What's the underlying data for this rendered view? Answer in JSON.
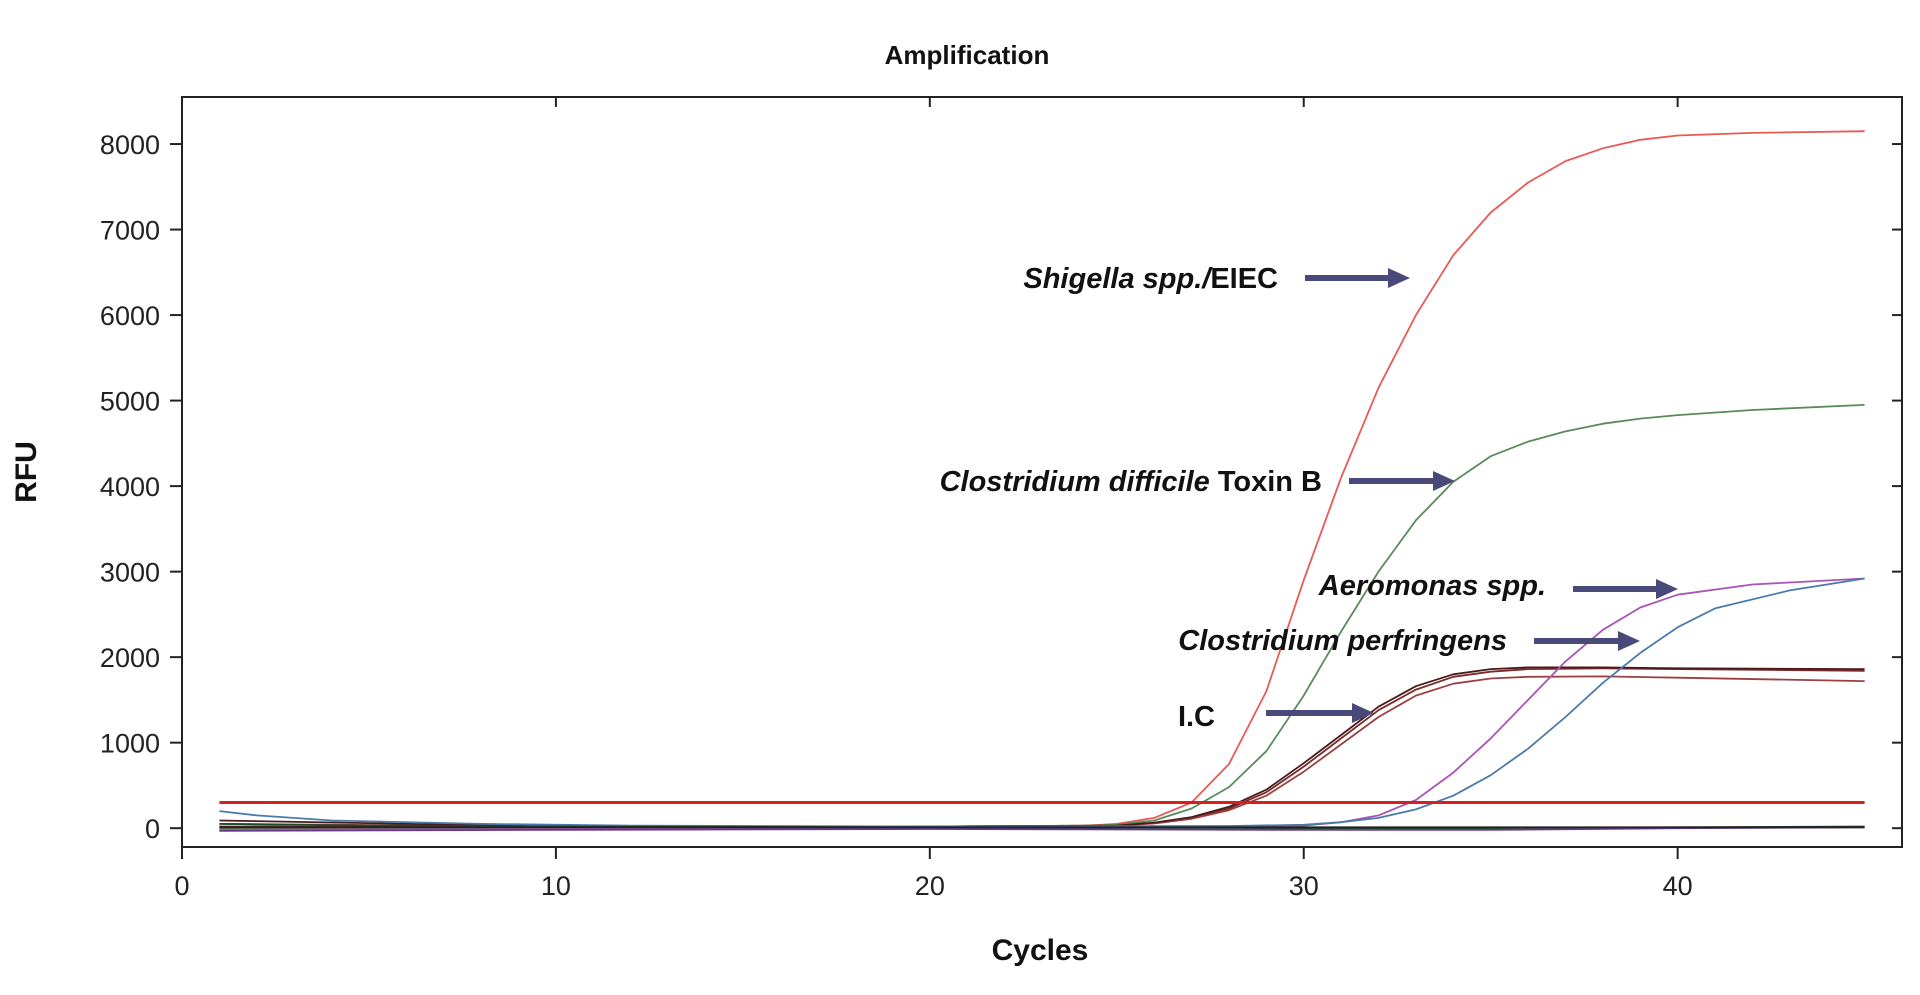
{
  "chart_data": {
    "type": "line",
    "title": "Amplification",
    "xlabel": "Cycles",
    "ylabel": "RFU",
    "xlim": [
      0,
      46
    ],
    "ylim": [
      -220,
      8550
    ],
    "xticks": [
      0,
      10,
      20,
      30,
      40
    ],
    "yticks": [
      0,
      1000,
      2000,
      3000,
      4000,
      5000,
      6000,
      7000,
      8000
    ],
    "grid": false,
    "threshold": {
      "value": 300,
      "color": "#d62020"
    },
    "series": [
      {
        "color": "#e85a55",
        "points": [
          [
            1,
            -10
          ],
          [
            10,
            10
          ],
          [
            20,
            20
          ],
          [
            24,
            25
          ],
          [
            25,
            50
          ],
          [
            26,
            120
          ],
          [
            27,
            300
          ],
          [
            28,
            750
          ],
          [
            29,
            1600
          ],
          [
            30,
            2900
          ],
          [
            31,
            4100
          ],
          [
            32,
            5150
          ],
          [
            33,
            6000
          ],
          [
            34,
            6700
          ],
          [
            35,
            7200
          ],
          [
            36,
            7550
          ],
          [
            37,
            7800
          ],
          [
            38,
            7950
          ],
          [
            39,
            8050
          ],
          [
            40,
            8100
          ],
          [
            42,
            8130
          ],
          [
            45,
            8150
          ]
        ]
      },
      {
        "color": "#5a8a5a",
        "points": [
          [
            1,
            0
          ],
          [
            10,
            10
          ],
          [
            20,
            20
          ],
          [
            24,
            25
          ],
          [
            25,
            40
          ],
          [
            26,
            90
          ],
          [
            27,
            230
          ],
          [
            28,
            480
          ],
          [
            29,
            900
          ],
          [
            30,
            1550
          ],
          [
            31,
            2300
          ],
          [
            32,
            3000
          ],
          [
            33,
            3600
          ],
          [
            34,
            4050
          ],
          [
            35,
            4350
          ],
          [
            36,
            4520
          ],
          [
            37,
            4640
          ],
          [
            38,
            4730
          ],
          [
            39,
            4790
          ],
          [
            40,
            4830
          ],
          [
            42,
            4890
          ],
          [
            45,
            4950
          ]
        ]
      },
      {
        "color": "#7a2a2a",
        "points": [
          [
            1,
            20
          ],
          [
            10,
            10
          ],
          [
            20,
            20
          ],
          [
            25,
            30
          ],
          [
            26,
            60
          ],
          [
            27,
            120
          ],
          [
            28,
            230
          ],
          [
            29,
            420
          ],
          [
            30,
            720
          ],
          [
            31,
            1050
          ],
          [
            32,
            1380
          ],
          [
            33,
            1620
          ],
          [
            34,
            1770
          ],
          [
            35,
            1830
          ],
          [
            36,
            1860
          ],
          [
            38,
            1870
          ],
          [
            40,
            1860
          ],
          [
            45,
            1840
          ]
        ]
      },
      {
        "color": "#9a4040",
        "points": [
          [
            1,
            50
          ],
          [
            10,
            20
          ],
          [
            20,
            20
          ],
          [
            25,
            30
          ],
          [
            26,
            55
          ],
          [
            27,
            110
          ],
          [
            28,
            210
          ],
          [
            29,
            380
          ],
          [
            30,
            660
          ],
          [
            31,
            980
          ],
          [
            32,
            1300
          ],
          [
            33,
            1550
          ],
          [
            34,
            1690
          ],
          [
            35,
            1750
          ],
          [
            36,
            1770
          ],
          [
            38,
            1775
          ],
          [
            40,
            1760
          ],
          [
            45,
            1720
          ]
        ]
      },
      {
        "color": "#4a1a1a",
        "points": [
          [
            1,
            90
          ],
          [
            10,
            20
          ],
          [
            20,
            20
          ],
          [
            25,
            30
          ],
          [
            26,
            65
          ],
          [
            27,
            130
          ],
          [
            28,
            250
          ],
          [
            29,
            450
          ],
          [
            30,
            760
          ],
          [
            31,
            1090
          ],
          [
            32,
            1420
          ],
          [
            33,
            1660
          ],
          [
            34,
            1800
          ],
          [
            35,
            1860
          ],
          [
            36,
            1880
          ],
          [
            38,
            1880
          ],
          [
            40,
            1870
          ],
          [
            45,
            1860
          ]
        ]
      },
      {
        "color": "#a855b5",
        "points": [
          [
            1,
            -20
          ],
          [
            10,
            -10
          ],
          [
            20,
            0
          ],
          [
            28,
            10
          ],
          [
            30,
            30
          ],
          [
            31,
            70
          ],
          [
            32,
            150
          ],
          [
            33,
            330
          ],
          [
            34,
            650
          ],
          [
            35,
            1050
          ],
          [
            36,
            1500
          ],
          [
            37,
            1950
          ],
          [
            38,
            2320
          ],
          [
            39,
            2580
          ],
          [
            40,
            2730
          ],
          [
            42,
            2850
          ],
          [
            45,
            2920
          ]
        ]
      },
      {
        "color": "#4a7aaa",
        "points": [
          [
            1,
            200
          ],
          [
            2,
            150
          ],
          [
            4,
            90
          ],
          [
            8,
            50
          ],
          [
            12,
            30
          ],
          [
            20,
            20
          ],
          [
            28,
            25
          ],
          [
            30,
            40
          ],
          [
            31,
            70
          ],
          [
            32,
            120
          ],
          [
            33,
            220
          ],
          [
            34,
            380
          ],
          [
            35,
            620
          ],
          [
            36,
            930
          ],
          [
            37,
            1300
          ],
          [
            38,
            1700
          ],
          [
            39,
            2050
          ],
          [
            40,
            2350
          ],
          [
            41,
            2570
          ],
          [
            43,
            2780
          ],
          [
            45,
            2920
          ]
        ]
      },
      {
        "color": "#1f4a2a",
        "points": [
          [
            1,
            50
          ],
          [
            5,
            30
          ],
          [
            10,
            20
          ],
          [
            20,
            10
          ],
          [
            30,
            0
          ],
          [
            35,
            0
          ],
          [
            40,
            10
          ],
          [
            45,
            20
          ]
        ]
      },
      {
        "color": "#6a3a8a",
        "points": [
          [
            1,
            -30
          ],
          [
            10,
            -20
          ],
          [
            20,
            -10
          ],
          [
            30,
            -20
          ],
          [
            35,
            -20
          ],
          [
            40,
            0
          ],
          [
            45,
            10
          ]
        ]
      },
      {
        "color": "#222222",
        "points": [
          [
            1,
            10
          ],
          [
            20,
            10
          ],
          [
            30,
            10
          ],
          [
            45,
            10
          ]
        ]
      }
    ],
    "annotations": [
      {
        "parts": [
          {
            "text": "Shigella spp./",
            "italic": true
          },
          {
            "text": "EIEC",
            "italic": false
          }
        ],
        "arrow_color": "#4a4a7a"
      },
      {
        "parts": [
          {
            "text": "Clostridium difficile",
            "italic": true
          },
          {
            "text": " Toxin B",
            "italic": false
          }
        ],
        "arrow_color": "#4a4a7a"
      },
      {
        "parts": [
          {
            "text": "Aeromonas spp.",
            "italic": true
          }
        ],
        "arrow_color": "#4a4a7a"
      },
      {
        "parts": [
          {
            "text": "Clostridium perfringens",
            "italic": true
          }
        ],
        "arrow_color": "#4a4a7a"
      },
      {
        "parts": [
          {
            "text": "I.C",
            "italic": false
          }
        ],
        "arrow_color": "#4a4a7a"
      }
    ]
  }
}
